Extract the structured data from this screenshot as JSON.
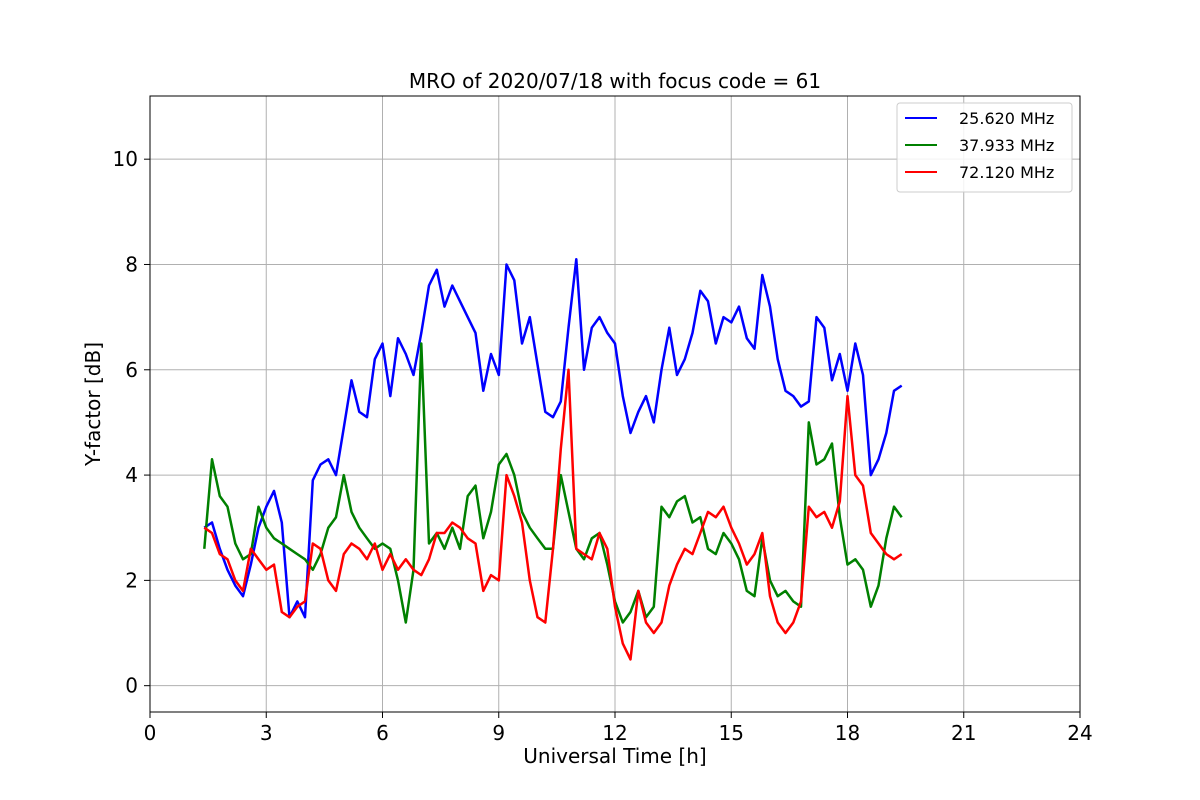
{
  "chart_data": {
    "type": "line",
    "title": "MRO of 2020/07/18 with focus code = 61",
    "xlabel": "Universal Time [h]",
    "ylabel": "Y-factor [dB]",
    "xlim": [
      0,
      24
    ],
    "ylim": [
      -0.5,
      11.2
    ],
    "xticks": [
      0,
      3,
      6,
      9,
      12,
      15,
      18,
      21,
      24
    ],
    "yticks": [
      0,
      2,
      4,
      6,
      8,
      10
    ],
    "grid": true,
    "legend_position": "top-right",
    "series": [
      {
        "name": "25.620 MHz",
        "color": "#0000ff",
        "x": [
          1.4,
          1.6,
          1.8,
          2.0,
          2.2,
          2.4,
          2.6,
          2.8,
          3.0,
          3.2,
          3.4,
          3.6,
          3.8,
          4.0,
          4.2,
          4.4,
          4.6,
          4.8,
          5.0,
          5.2,
          5.4,
          5.6,
          5.8,
          6.0,
          6.2,
          6.4,
          6.6,
          6.8,
          7.0,
          7.2,
          7.4,
          7.6,
          7.8,
          8.0,
          8.2,
          8.4,
          8.6,
          8.8,
          9.0,
          9.2,
          9.4,
          9.6,
          9.8,
          10.0,
          10.2,
          10.4,
          10.6,
          10.8,
          11.0,
          11.2,
          11.4,
          11.6,
          11.8,
          12.0,
          12.2,
          12.4,
          12.6,
          12.8,
          13.0,
          13.2,
          13.4,
          13.6,
          13.8,
          14.0,
          14.2,
          14.4,
          14.6,
          14.8,
          15.0,
          15.2,
          15.4,
          15.6,
          15.8,
          16.0,
          16.2,
          16.4,
          16.6,
          16.8,
          17.0,
          17.2,
          17.4,
          17.6,
          17.8,
          18.0,
          18.2,
          18.4,
          18.6,
          18.8,
          19.0,
          19.2,
          19.4
        ],
        "y": [
          3.0,
          3.1,
          2.6,
          2.2,
          1.9,
          1.7,
          2.3,
          3.0,
          3.4,
          3.7,
          3.1,
          1.3,
          1.6,
          1.3,
          3.9,
          4.2,
          4.3,
          4.0,
          4.9,
          5.8,
          5.2,
          5.1,
          6.2,
          6.5,
          5.5,
          6.6,
          6.3,
          5.9,
          6.7,
          7.6,
          7.9,
          7.2,
          7.6,
          7.3,
          7.0,
          6.7,
          5.6,
          6.3,
          5.9,
          8.0,
          7.7,
          6.5,
          7.0,
          6.1,
          5.2,
          5.1,
          5.4,
          6.8,
          8.1,
          6.0,
          6.8,
          7.0,
          6.7,
          6.5,
          5.5,
          4.8,
          5.2,
          5.5,
          5.0,
          6.0,
          6.8,
          5.9,
          6.2,
          6.7,
          7.5,
          7.3,
          6.5,
          7.0,
          6.9,
          7.2,
          6.6,
          6.4,
          7.8,
          7.2,
          6.2,
          5.6,
          5.5,
          5.3,
          5.4,
          7.0,
          6.8,
          5.8,
          6.3,
          5.6,
          6.5,
          5.9,
          4.0,
          4.3,
          4.8,
          5.6,
          5.7
        ]
      },
      {
        "name": "37.933 MHz",
        "color": "#008000",
        "x": [
          1.4,
          1.6,
          1.8,
          2.0,
          2.2,
          2.4,
          2.6,
          2.8,
          3.0,
          3.2,
          3.4,
          3.6,
          3.8,
          4.0,
          4.2,
          4.4,
          4.6,
          4.8,
          5.0,
          5.2,
          5.4,
          5.6,
          5.8,
          6.0,
          6.2,
          6.4,
          6.6,
          6.8,
          7.0,
          7.2,
          7.4,
          7.6,
          7.8,
          8.0,
          8.2,
          8.4,
          8.6,
          8.8,
          9.0,
          9.2,
          9.4,
          9.6,
          9.8,
          10.0,
          10.2,
          10.4,
          10.6,
          10.8,
          11.0,
          11.2,
          11.4,
          11.6,
          11.8,
          12.0,
          12.2,
          12.4,
          12.6,
          12.8,
          13.0,
          13.2,
          13.4,
          13.6,
          13.8,
          14.0,
          14.2,
          14.4,
          14.6,
          14.8,
          15.0,
          15.2,
          15.4,
          15.6,
          15.8,
          16.0,
          16.2,
          16.4,
          16.6,
          16.8,
          17.0,
          17.2,
          17.4,
          17.6,
          17.8,
          18.0,
          18.2,
          18.4,
          18.6,
          18.8,
          19.0,
          19.2,
          19.4
        ],
        "y": [
          2.6,
          4.3,
          3.6,
          3.4,
          2.7,
          2.4,
          2.5,
          3.4,
          3.0,
          2.8,
          2.7,
          2.6,
          2.5,
          2.4,
          2.2,
          2.5,
          3.0,
          3.2,
          4.0,
          3.3,
          3.0,
          2.8,
          2.6,
          2.7,
          2.6,
          2.0,
          1.2,
          2.2,
          6.5,
          2.7,
          2.9,
          2.6,
          3.0,
          2.6,
          3.6,
          3.8,
          2.8,
          3.3,
          4.2,
          4.4,
          4.0,
          3.3,
          3.0,
          2.8,
          2.6,
          2.6,
          4.0,
          3.3,
          2.6,
          2.4,
          2.8,
          2.9,
          2.3,
          1.6,
          1.2,
          1.4,
          1.8,
          1.3,
          1.5,
          3.4,
          3.2,
          3.5,
          3.6,
          3.1,
          3.2,
          2.6,
          2.5,
          2.9,
          2.7,
          2.4,
          1.8,
          1.7,
          2.8,
          2.0,
          1.7,
          1.8,
          1.6,
          1.5,
          5.0,
          4.2,
          4.3,
          4.6,
          3.2,
          2.3,
          2.4,
          2.2,
          1.5,
          1.9,
          2.8,
          3.4,
          3.2
        ]
      },
      {
        "name": "72.120 MHz",
        "color": "#ff0000",
        "x": [
          1.4,
          1.6,
          1.8,
          2.0,
          2.2,
          2.4,
          2.6,
          2.8,
          3.0,
          3.2,
          3.4,
          3.6,
          3.8,
          4.0,
          4.2,
          4.4,
          4.6,
          4.8,
          5.0,
          5.2,
          5.4,
          5.6,
          5.8,
          6.0,
          6.2,
          6.4,
          6.6,
          6.8,
          7.0,
          7.2,
          7.4,
          7.6,
          7.8,
          8.0,
          8.2,
          8.4,
          8.6,
          8.8,
          9.0,
          9.2,
          9.4,
          9.6,
          9.8,
          10.0,
          10.2,
          10.4,
          10.6,
          10.8,
          11.0,
          11.2,
          11.4,
          11.6,
          11.8,
          12.0,
          12.2,
          12.4,
          12.6,
          12.8,
          13.0,
          13.2,
          13.4,
          13.6,
          13.8,
          14.0,
          14.2,
          14.4,
          14.6,
          14.8,
          15.0,
          15.2,
          15.4,
          15.6,
          15.8,
          16.0,
          16.2,
          16.4,
          16.6,
          16.8,
          17.0,
          17.2,
          17.4,
          17.6,
          17.8,
          18.0,
          18.2,
          18.4,
          18.6,
          18.8,
          19.0,
          19.2,
          19.4
        ],
        "y": [
          3.0,
          2.9,
          2.5,
          2.4,
          2.0,
          1.8,
          2.6,
          2.4,
          2.2,
          2.3,
          1.4,
          1.3,
          1.5,
          1.6,
          2.7,
          2.6,
          2.0,
          1.8,
          2.5,
          2.7,
          2.6,
          2.4,
          2.7,
          2.2,
          2.5,
          2.2,
          2.4,
          2.2,
          2.1,
          2.4,
          2.9,
          2.9,
          3.1,
          3.0,
          2.8,
          2.7,
          1.8,
          2.1,
          2.0,
          4.0,
          3.6,
          3.1,
          2.0,
          1.3,
          1.2,
          2.6,
          4.5,
          6.0,
          2.6,
          2.5,
          2.4,
          2.9,
          2.6,
          1.5,
          0.8,
          0.5,
          1.8,
          1.2,
          1.0,
          1.2,
          1.9,
          2.3,
          2.6,
          2.5,
          2.9,
          3.3,
          3.2,
          3.4,
          3.0,
          2.7,
          2.3,
          2.5,
          2.9,
          1.7,
          1.2,
          1.0,
          1.2,
          1.6,
          3.4,
          3.2,
          3.3,
          3.0,
          3.5,
          5.5,
          4.0,
          3.8,
          2.9,
          2.7,
          2.5,
          2.4,
          2.5
        ]
      }
    ],
    "annotations": []
  }
}
